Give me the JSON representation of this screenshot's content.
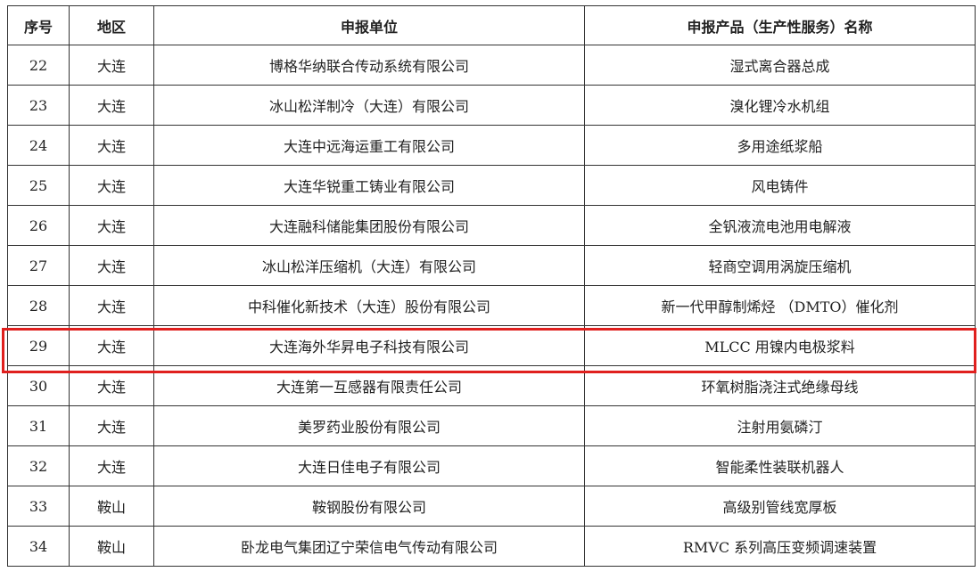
{
  "table": {
    "headers": [
      "序号",
      "地区",
      "申报单位",
      "申报产品（生产性服务）名称"
    ],
    "rows": [
      [
        "22",
        "大连",
        "博格华纳联合传动系统有限公司",
        "湿式离合器总成"
      ],
      [
        "23",
        "大连",
        "冰山松洋制冷（大连）有限公司",
        "溴化锂冷水机组"
      ],
      [
        "24",
        "大连",
        "大连中远海运重工有限公司",
        "多用途纸浆船"
      ],
      [
        "25",
        "大连",
        "大连华锐重工铸业有限公司",
        "风电铸件"
      ],
      [
        "26",
        "大连",
        "大连融科储能集团股份有限公司",
        "全钒液流电池用电解液"
      ],
      [
        "27",
        "大连",
        "冰山松洋压缩机（大连）有限公司",
        "轻商空调用涡旋压缩机"
      ],
      [
        "28",
        "大连",
        "中科催化新技术（大连）股份有限公司",
        "新一代甲醇制烯烃 （DMTO）催化剂"
      ],
      [
        "29",
        "大连",
        "大连海外华昇电子科技有限公司",
        "MLCC 用镍内电极浆料"
      ],
      [
        "30",
        "大连",
        "大连第一互感器有限责任公司",
        "环氧树脂浇注式绝缘母线"
      ],
      [
        "31",
        "大连",
        "美罗药业股份有限公司",
        "注射用氨磷汀"
      ],
      [
        "32",
        "大连",
        "大连日佳电子有限公司",
        "智能柔性装联机器人"
      ],
      [
        "33",
        "鞍山",
        "鞍钢股份有限公司",
        "高级别管线宽厚板"
      ],
      [
        "34",
        "鞍山",
        "卧龙电气集团辽宁荣信电气传动有限公司",
        "RMVC 系列高压变频调速装置"
      ]
    ],
    "highlighted_row": "29",
    "highlight_color": "#e0201e"
  }
}
